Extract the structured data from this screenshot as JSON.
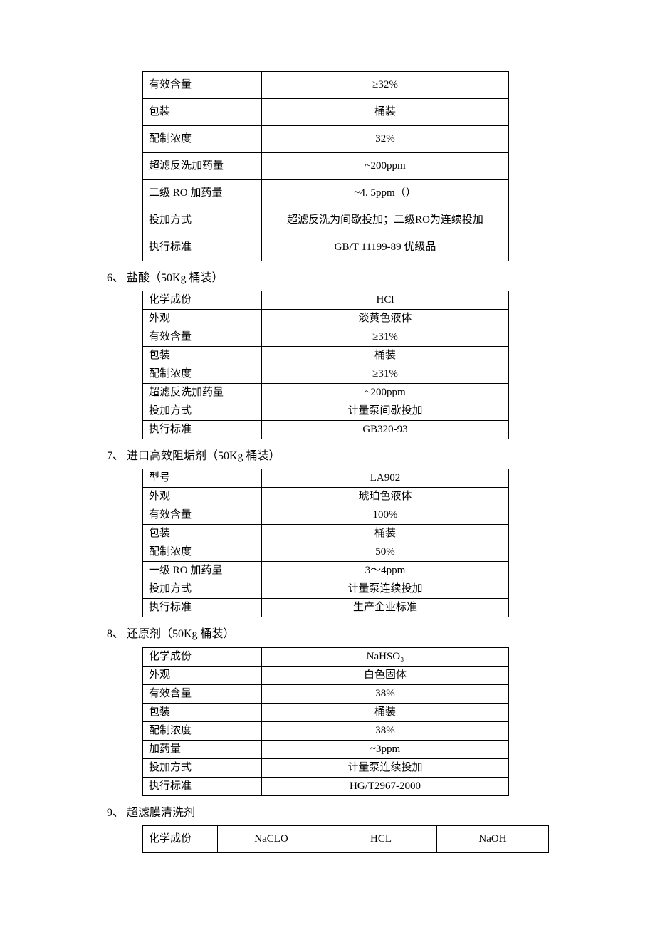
{
  "section5": {
    "rows": [
      {
        "label": "有效含量",
        "value": "≥32%"
      },
      {
        "label": "包装",
        "value": "桶装"
      },
      {
        "label": "配制浓度",
        "value": "32%"
      },
      {
        "label": "超滤反洗加药量",
        "value": "~200ppm"
      },
      {
        "label": "二级 RO 加药量",
        "value": "~4. 5ppm（）"
      },
      {
        "label": "投加方式",
        "value": "超滤反洗为间歇投加；二级RO为连续投加"
      },
      {
        "label": "执行标准",
        "value": "GB/T 11199-89 优级品"
      }
    ]
  },
  "section6": {
    "title": "6、 盐酸（50Kg 桶装）",
    "rows": [
      {
        "label": "化学成份",
        "value": "HCl"
      },
      {
        "label": "外观",
        "value": "淡黄色液体"
      },
      {
        "label": "有效含量",
        "value": "≥31%"
      },
      {
        "label": "包装",
        "value": "桶装"
      },
      {
        "label": "配制浓度",
        "value": "≥31%"
      },
      {
        "label": "超滤反洗加药量",
        "value": "~200ppm"
      },
      {
        "label": "投加方式",
        "value": "计量泵间歇投加"
      },
      {
        "label": "执行标准",
        "value": "GB320-93"
      }
    ]
  },
  "section7": {
    "title": "7、 进口高效阻垢剂（50Kg 桶装）",
    "rows": [
      {
        "label": "型号",
        "value": "LA902"
      },
      {
        "label": "外观",
        "value": "琥珀色液体"
      },
      {
        "label": "有效含量",
        "value": "100%"
      },
      {
        "label": "包装",
        "value": "桶装"
      },
      {
        "label": "配制浓度",
        "value": "50%"
      },
      {
        "label": "一级 RO 加药量",
        "value": "3～4ppm"
      },
      {
        "label": "投加方式",
        "value": "计量泵连续投加"
      },
      {
        "label": "执行标准",
        "value": "生产企业标准"
      }
    ]
  },
  "section8": {
    "title": "8、 还原剂（50Kg 桶装）",
    "rows": [
      {
        "label": "化学成份",
        "value": "NaHSO₃"
      },
      {
        "label": "外观",
        "value": "白色固体"
      },
      {
        "label": "有效含量",
        "value": "38%"
      },
      {
        "label": "包装",
        "value": "桶装"
      },
      {
        "label": "配制浓度",
        "value": "38%"
      },
      {
        "label": "加药量",
        "value": "~3ppm"
      },
      {
        "label": "投加方式",
        "value": "计量泵连续投加"
      },
      {
        "label": "执行标准",
        "value": "HG/T2967-2000"
      }
    ]
  },
  "section9": {
    "title": "9、 超滤膜清洗剂",
    "row": {
      "label": "化学成份",
      "c2": "NaCLO",
      "c3": "HCL",
      "c4": "NaOH"
    }
  }
}
